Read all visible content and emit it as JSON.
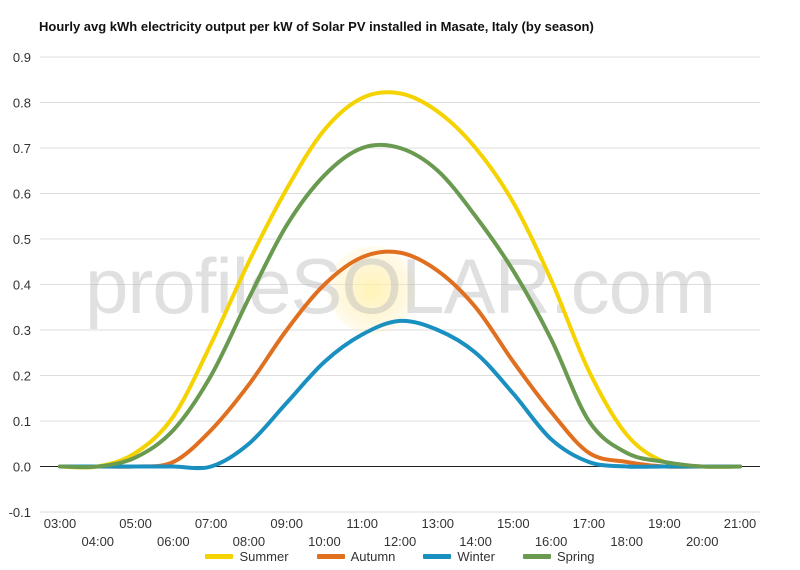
{
  "chart_data": {
    "type": "line",
    "title": "Hourly avg kWh electricity output per kW of Solar PV installed in Masate, Italy (by season)",
    "xlabel": "",
    "ylabel": "",
    "ylim": [
      -0.1,
      0.9
    ],
    "yticks": [
      "-0.1",
      "0.0",
      "0.1",
      "0.2",
      "0.3",
      "0.4",
      "0.5",
      "0.6",
      "0.7",
      "0.8",
      "0.9"
    ],
    "categories": [
      "03:00",
      "04:00",
      "05:00",
      "06:00",
      "07:00",
      "08:00",
      "09:00",
      "10:00",
      "11:00",
      "12:00",
      "13:00",
      "14:00",
      "15:00",
      "16:00",
      "17:00",
      "18:00",
      "19:00",
      "20:00",
      "21:00"
    ],
    "grid": true,
    "legend_position": "bottom",
    "series": [
      {
        "name": "Summer",
        "color": "#f5d300",
        "values": [
          0.0,
          0.0,
          0.03,
          0.11,
          0.27,
          0.45,
          0.61,
          0.74,
          0.81,
          0.82,
          0.78,
          0.7,
          0.58,
          0.41,
          0.21,
          0.07,
          0.01,
          0.0,
          0.0
        ]
      },
      {
        "name": "Autumn",
        "color": "#e07020",
        "values": [
          0.0,
          0.0,
          0.0,
          0.01,
          0.08,
          0.18,
          0.3,
          0.4,
          0.46,
          0.47,
          0.43,
          0.35,
          0.23,
          0.12,
          0.03,
          0.01,
          0.0,
          0.0,
          0.0
        ]
      },
      {
        "name": "Winter",
        "color": "#1a90c0",
        "values": [
          0.0,
          0.0,
          0.0,
          0.0,
          0.0,
          0.05,
          0.14,
          0.23,
          0.29,
          0.32,
          0.3,
          0.25,
          0.16,
          0.06,
          0.01,
          0.0,
          0.0,
          0.0,
          0.0
        ]
      },
      {
        "name": "Spring",
        "color": "#6a9a50",
        "values": [
          0.0,
          0.0,
          0.02,
          0.08,
          0.2,
          0.37,
          0.53,
          0.64,
          0.7,
          0.7,
          0.65,
          0.55,
          0.43,
          0.28,
          0.1,
          0.03,
          0.01,
          0.0,
          0.0
        ]
      }
    ]
  },
  "watermark": "profileSOLAR.com"
}
